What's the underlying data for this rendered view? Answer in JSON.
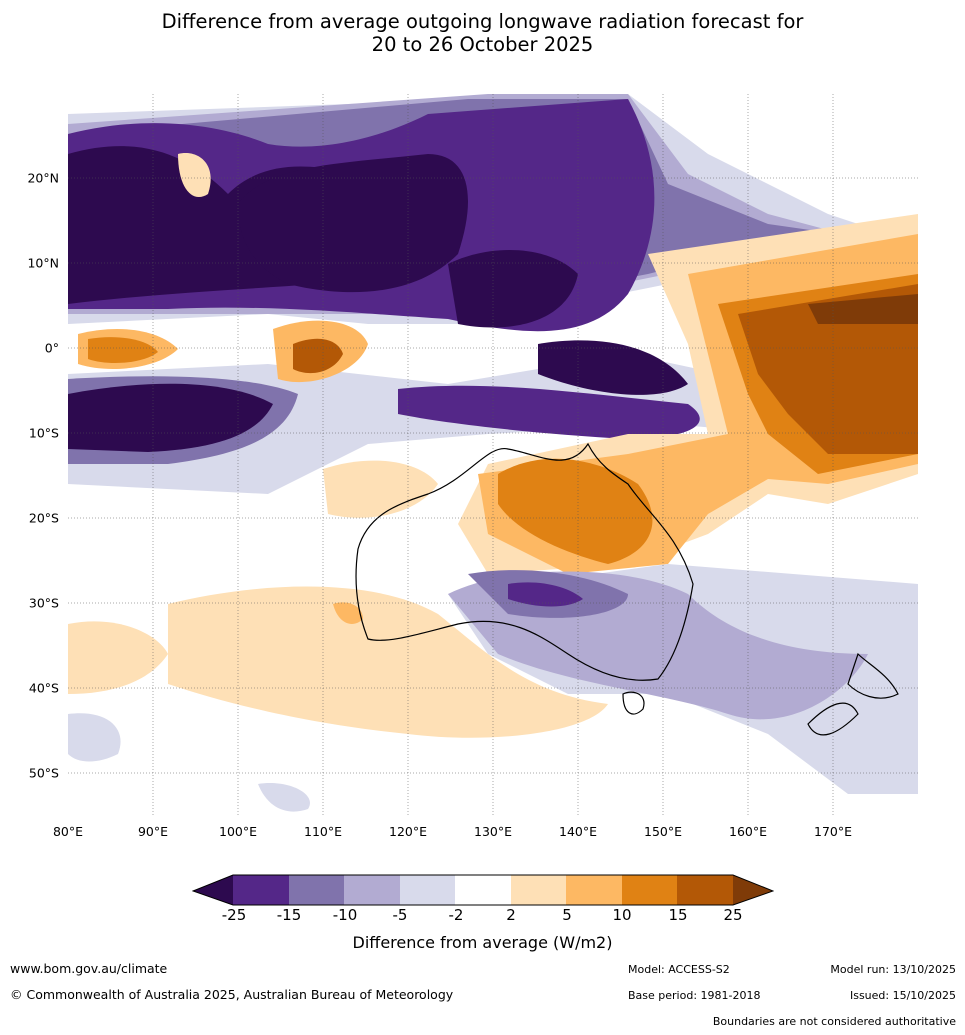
{
  "title": {
    "line1": "Difference from average outgoing longwave radiation forecast for",
    "line2": "20 to 26 October 2025"
  },
  "axes": {
    "lat_labels": [
      "20°N",
      "10°N",
      "0°",
      "10°S",
      "20°S",
      "30°S",
      "40°S",
      "50°S"
    ],
    "lon_labels": [
      "80°E",
      "90°E",
      "100°E",
      "110°E",
      "120°E",
      "130°E",
      "140°E",
      "150°E",
      "160°E",
      "170°E"
    ]
  },
  "legend": {
    "ticks": [
      "-25",
      "-15",
      "-10",
      "-5",
      "-2",
      "2",
      "5",
      "10",
      "15",
      "25"
    ],
    "colors": [
      "#2d0a4f",
      "#542788",
      "#8073ac",
      "#b2abd2",
      "#d8daeb",
      "#ffffff",
      "#fee0b6",
      "#fdb863",
      "#e08214",
      "#b35806",
      "#7f3b08"
    ],
    "label": "Difference from average (W/m2)"
  },
  "footer": {
    "website": "www.bom.gov.au/climate",
    "copyright": "© Commonwealth of Australia 2025, Australian Bureau of Meteorology",
    "model": "Model: ACCESS-S2",
    "base_period": "Base period: 1981-2018",
    "model_run": "Model run: 13/10/2025",
    "issued": "Issued: 15/10/2025",
    "disclaimer": "Boundaries are not considered authoritative"
  }
}
